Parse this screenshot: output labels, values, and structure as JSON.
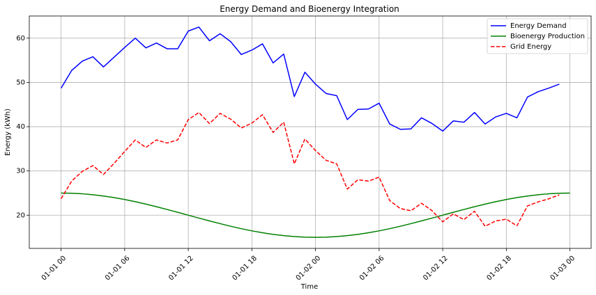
{
  "chart_data": {
    "type": "line",
    "title": "Energy Demand and Bioenergy Integration",
    "xlabel": "Time",
    "ylabel": "Energy (kWh)",
    "x_start": "01-01 00",
    "x_step_hours": 1,
    "xlim_hours": [
      -3,
      50
    ],
    "ylim": [
      12.5,
      65
    ],
    "x_ticks": [
      {
        "hours": 0,
        "label": "01-01 00"
      },
      {
        "hours": 6,
        "label": "01-01 06"
      },
      {
        "hours": 12,
        "label": "01-01 12"
      },
      {
        "hours": 18,
        "label": "01-01 18"
      },
      {
        "hours": 24,
        "label": "01-02 00"
      },
      {
        "hours": 30,
        "label": "01-02 06"
      },
      {
        "hours": 36,
        "label": "01-02 12"
      },
      {
        "hours": 42,
        "label": "01-02 18"
      },
      {
        "hours": 48,
        "label": "01-03 00"
      }
    ],
    "y_ticks": [
      20,
      30,
      40,
      50,
      60
    ],
    "grid": true,
    "legend_position": "top-right",
    "series": [
      {
        "name": "Energy Demand",
        "color": "#0000ff",
        "dash": "solid",
        "values": [
          48.7,
          52.7,
          54.8,
          55.8,
          53.5,
          55.7,
          57.9,
          60.0,
          57.8,
          58.9,
          57.6,
          57.6,
          61.6,
          62.5,
          59.4,
          61.0,
          59.2,
          56.3,
          57.3,
          58.7,
          54.4,
          56.4,
          46.8,
          52.3,
          49.6,
          47.5,
          47.0,
          41.6,
          43.9,
          44.0,
          45.3,
          40.6,
          39.4,
          39.5,
          42.0,
          40.7,
          39.0,
          41.3,
          41.0,
          43.2,
          40.6,
          42.2,
          43.0,
          42.0,
          46.7,
          47.9,
          48.7,
          49.6
        ]
      },
      {
        "name": "Bioenergy Production",
        "color": "#008000",
        "dash": "solid",
        "values": [
          25.0,
          24.96,
          24.83,
          24.62,
          24.33,
          23.97,
          23.54,
          23.05,
          22.5,
          21.91,
          21.29,
          20.65,
          20.0,
          19.35,
          18.71,
          18.09,
          17.5,
          16.95,
          16.46,
          16.03,
          15.67,
          15.38,
          15.17,
          15.04,
          15.0,
          15.04,
          15.17,
          15.38,
          15.67,
          16.03,
          16.46,
          16.95,
          17.5,
          18.09,
          18.71,
          19.35,
          20.0,
          20.65,
          21.29,
          21.91,
          22.5,
          23.05,
          23.54,
          23.97,
          24.33,
          24.62,
          24.83,
          24.96,
          25.0
        ]
      },
      {
        "name": "Grid Energy",
        "color": "#ff0000",
        "dash": "dashed",
        "values": [
          23.7,
          27.7,
          29.9,
          31.2,
          29.2,
          31.7,
          34.4,
          37.0,
          35.3,
          37.0,
          36.3,
          37.0,
          41.6,
          43.2,
          40.7,
          43.0,
          41.7,
          39.7,
          40.8,
          42.7,
          38.7,
          41.0,
          31.6,
          37.2,
          34.6,
          32.4,
          31.6,
          25.9,
          28.0,
          27.7,
          28.6,
          23.3,
          21.5,
          21.0,
          22.7,
          21.0,
          18.5,
          20.3,
          19.0,
          20.9,
          17.5,
          18.7,
          19.1,
          17.6,
          22.1,
          23.0,
          23.7,
          24.6
        ]
      }
    ]
  }
}
